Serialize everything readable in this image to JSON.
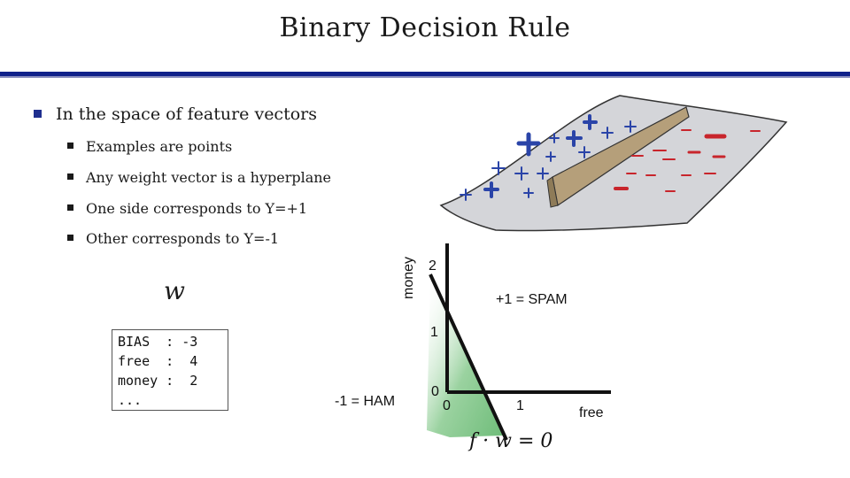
{
  "slide": {
    "title": "Binary Decision Rule",
    "bullet": "In the space of feature vectors",
    "sub_bullets": [
      "Examples are points",
      "Any weight vector is a hyperplane",
      "One side corresponds to Y=+1",
      "Other corresponds to Y=-1"
    ],
    "w_symbol": "w",
    "weights_text": "BIAS  : -3\nfree  :  4\nmoney :  2\n...",
    "colors": {
      "accent_bar": "#10218a",
      "region_fill": "#5fb56b",
      "plus": "#2a44a8",
      "minus": "#c8252c"
    }
  },
  "plot": {
    "y_axis_label": "money",
    "x_axis_label": "free",
    "pos_label": "+1 = SPAM",
    "neg_label": "-1 = HAM",
    "ytick_2": "2",
    "ytick_1": "1",
    "ytick_0": "0",
    "xtick_0": "0",
    "xtick_1": "1",
    "boundary_eq": "f · w = 0"
  }
}
